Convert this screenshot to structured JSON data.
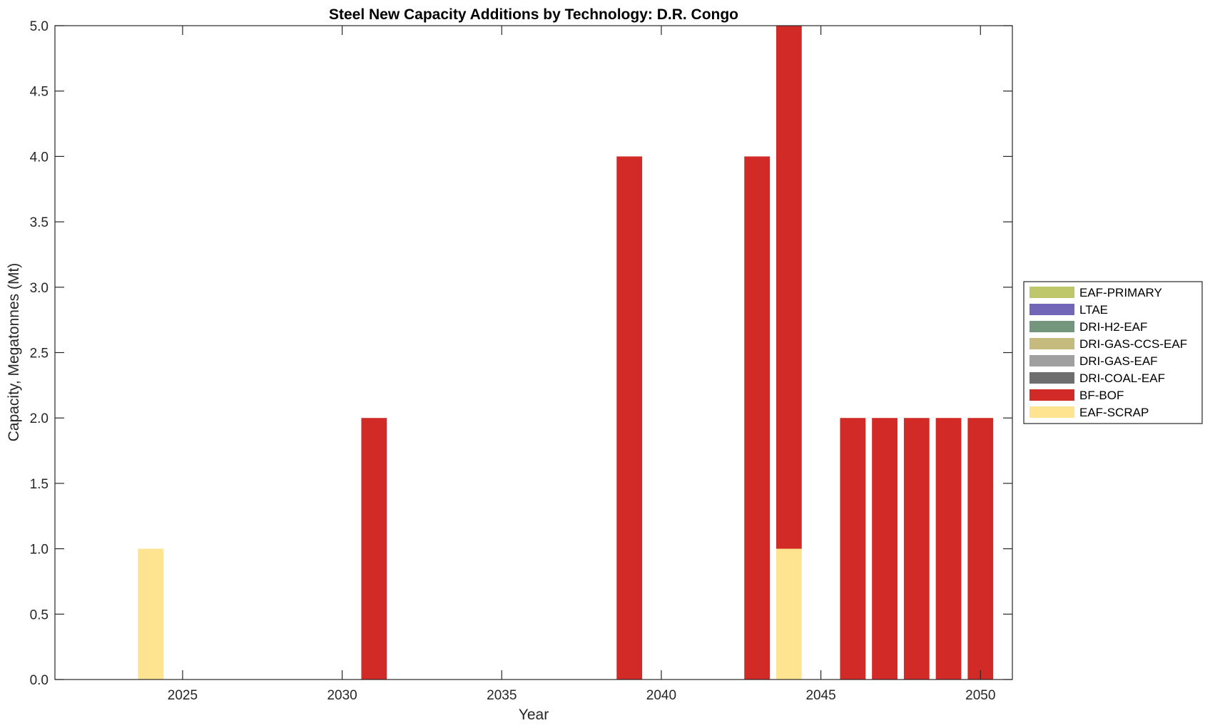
{
  "chart_data": {
    "type": "bar",
    "stacked": true,
    "title": "Steel New Capacity Additions by Technology: D.R. Congo",
    "xlabel": "Year",
    "ylabel": "Capacity, Megatonnes (Mt)",
    "xlim": [
      2021,
      2051
    ],
    "ylim": [
      0,
      5
    ],
    "xticks": [
      2025,
      2030,
      2035,
      2040,
      2045,
      2050
    ],
    "yticks": [
      "0.0",
      "0.5",
      "1.0",
      "1.5",
      "2.0",
      "2.5",
      "3.0",
      "3.5",
      "4.0",
      "4.5",
      "5.0"
    ],
    "grid": false,
    "legend_position": "right",
    "categories": [
      2024,
      2031,
      2039,
      2043,
      2044,
      2046,
      2047,
      2048,
      2049,
      2050
    ],
    "series": [
      {
        "name": "EAF-SCRAP",
        "color": "#fee391",
        "values": [
          1,
          0,
          0,
          0,
          1,
          0,
          0,
          0,
          0,
          0
        ]
      },
      {
        "name": "BF-BOF",
        "color": "#d22b27",
        "values": [
          0,
          2,
          4,
          4,
          4,
          2,
          2,
          2,
          2,
          2
        ]
      },
      {
        "name": "DRI-COAL-EAF",
        "color": "#6e6e6e",
        "values": [
          0,
          0,
          0,
          0,
          0,
          0,
          0,
          0,
          0,
          0
        ]
      },
      {
        "name": "DRI-GAS-EAF",
        "color": "#a0a0a0",
        "values": [
          0,
          0,
          0,
          0,
          0,
          0,
          0,
          0,
          0,
          0
        ]
      },
      {
        "name": "DRI-GAS-CCS-EAF",
        "color": "#c5bb7e",
        "values": [
          0,
          0,
          0,
          0,
          0,
          0,
          0,
          0,
          0,
          0
        ]
      },
      {
        "name": "DRI-H2-EAF",
        "color": "#74967c",
        "values": [
          0,
          0,
          0,
          0,
          0,
          0,
          0,
          0,
          0,
          0
        ]
      },
      {
        "name": "LTAE",
        "color": "#7266b8",
        "values": [
          0,
          0,
          0,
          0,
          0,
          0,
          0,
          0,
          0,
          0
        ]
      },
      {
        "name": "EAF-PRIMARY",
        "color": "#bec76a",
        "values": [
          0,
          0,
          0,
          0,
          0,
          0,
          0,
          0,
          0,
          0
        ]
      }
    ],
    "legend": [
      "EAF-PRIMARY",
      "LTAE",
      "DRI-H2-EAF",
      "DRI-GAS-CCS-EAF",
      "DRI-GAS-EAF",
      "DRI-COAL-EAF",
      "BF-BOF",
      "EAF-SCRAP"
    ]
  }
}
